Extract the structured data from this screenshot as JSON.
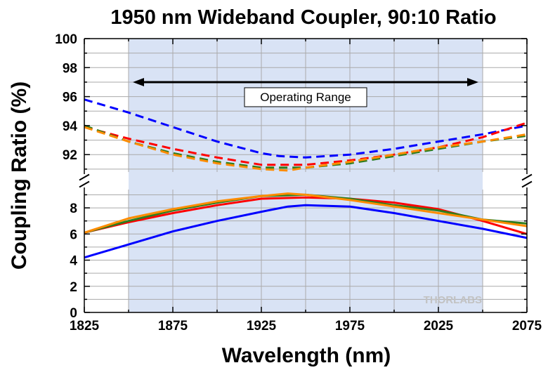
{
  "chart_data": {
    "type": "line",
    "title": "1950 nm Wideband Coupler, 90:10 Ratio",
    "xlabel": "Wavelength (nm)",
    "ylabel": "Coupling Ratio (%)",
    "xlim": [
      1825,
      2075
    ],
    "x_ticks": [
      "1825",
      "1875",
      "1925",
      "1975",
      "2025",
      "2075"
    ],
    "axis_break": true,
    "upper_panel": {
      "ylim": [
        90.8,
        100
      ],
      "y_ticks": [
        "92",
        "94",
        "96",
        "98",
        "100"
      ]
    },
    "lower_panel": {
      "ylim": [
        0,
        9.4
      ],
      "y_ticks": [
        "0",
        "2",
        "4",
        "6",
        "8"
      ]
    },
    "grid": true,
    "shaded_region": {
      "x_range": [
        1850,
        2050
      ],
      "color": "#d9e3f5"
    },
    "annotation": {
      "text": "Operating Range",
      "arrow_x_range": [
        1850,
        2050
      ],
      "arrow_y": 97
    },
    "watermark": "THORLABS",
    "series": [
      {
        "color": "#0000ff",
        "style": "dashed",
        "x": [
          1825,
          1850,
          1875,
          1900,
          1925,
          1935,
          1950,
          1975,
          2000,
          2025,
          2050,
          2075
        ],
        "y": [
          95.8,
          94.9,
          93.9,
          92.9,
          92.1,
          91.9,
          91.8,
          92.0,
          92.4,
          92.9,
          93.4,
          94.0
        ]
      },
      {
        "color": "#ff0000",
        "style": "dashed",
        "x": [
          1825,
          1850,
          1875,
          1900,
          1925,
          1950,
          1975,
          2000,
          2025,
          2050,
          2075
        ],
        "y": [
          93.9,
          93.1,
          92.4,
          91.8,
          91.3,
          91.3,
          91.6,
          92.0,
          92.5,
          93.2,
          94.2
        ]
      },
      {
        "color": "#2e7d1e",
        "style": "dashed",
        "x": [
          1825,
          1850,
          1875,
          1900,
          1925,
          1950,
          1975,
          2000,
          2025,
          2050,
          2075
        ],
        "y": [
          94.0,
          92.9,
          92.1,
          91.5,
          91.1,
          91.1,
          91.4,
          91.9,
          92.4,
          92.9,
          93.3
        ]
      },
      {
        "color": "#ff8c00",
        "style": "dashed",
        "x": [
          1825,
          1850,
          1875,
          1900,
          1925,
          1940,
          1950,
          1975,
          2000,
          2025,
          2050,
          2075
        ],
        "y": [
          93.9,
          92.9,
          92.0,
          91.4,
          91.0,
          90.9,
          91.1,
          91.5,
          92.0,
          92.5,
          92.9,
          93.4
        ]
      },
      {
        "color": "#0000ff",
        "style": "solid",
        "x": [
          1825,
          1850,
          1875,
          1900,
          1925,
          1940,
          1950,
          1975,
          2000,
          2025,
          2050,
          2075
        ],
        "y": [
          4.2,
          5.2,
          6.2,
          7.0,
          7.7,
          8.1,
          8.2,
          8.1,
          7.6,
          7.0,
          6.4,
          5.7
        ]
      },
      {
        "color": "#ff0000",
        "style": "solid",
        "x": [
          1825,
          1850,
          1875,
          1900,
          1925,
          1950,
          1975,
          2000,
          2025,
          2050,
          2075
        ],
        "y": [
          6.1,
          6.9,
          7.6,
          8.2,
          8.7,
          8.8,
          8.7,
          8.4,
          7.9,
          7.0,
          6.0
        ]
      },
      {
        "color": "#2e7d1e",
        "style": "solid",
        "x": [
          1825,
          1850,
          1875,
          1900,
          1925,
          1950,
          1975,
          2000,
          2025,
          2050,
          2075
        ],
        "y": [
          6.1,
          7.0,
          7.8,
          8.4,
          8.9,
          9.0,
          8.7,
          8.2,
          7.8,
          7.1,
          6.8
        ]
      },
      {
        "color": "#ff8c00",
        "style": "solid",
        "x": [
          1825,
          1850,
          1875,
          1900,
          1925,
          1940,
          1950,
          1975,
          2000,
          2025,
          2050,
          2075
        ],
        "y": [
          6.1,
          7.2,
          7.9,
          8.5,
          8.9,
          9.1,
          9.0,
          8.6,
          8.1,
          7.6,
          7.1,
          6.6
        ]
      }
    ]
  }
}
